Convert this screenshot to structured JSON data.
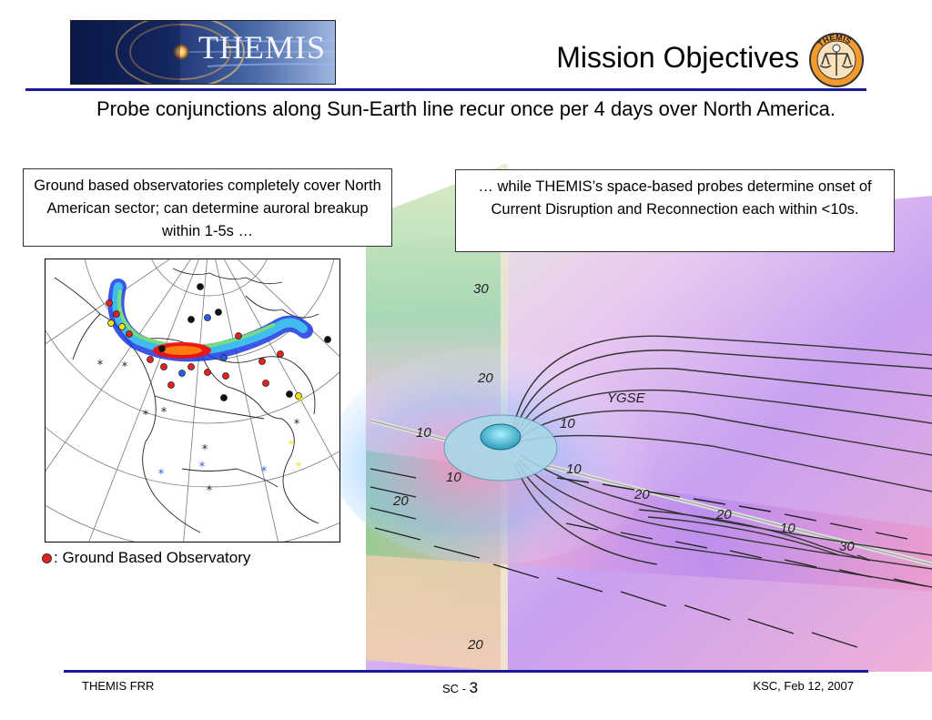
{
  "header": {
    "logo_text": "THEMIS",
    "title": "Mission Objectives",
    "seal_text": "THEMIS"
  },
  "subtitle": "Probe conjunctions along Sun-Earth line recur once per 4 days over North America.",
  "left_callout": {
    "text": "Ground based observatories completely cover North American sector; can determine auroral breakup within 1-5s …"
  },
  "right_callout": {
    "text": "… while THEMIS’s space-based probes determine onset of Current Disruption and Reconnection each within <10s."
  },
  "viz_labels": {
    "l1": "30",
    "l2": "20",
    "l3": "10",
    "l4": "10",
    "l5": "10",
    "l6": "20",
    "l7": "10",
    "l8": "20",
    "l9": "20",
    "l10": "10",
    "l11": "30",
    "l12": "20",
    "ygse": "YGSE"
  },
  "legend": {
    "text": ": Ground Based Observatory"
  },
  "footer": {
    "left": "THEMIS FRR",
    "mid_prefix": "SC - ",
    "mid_number": "3",
    "right": "KSC, Feb 12, 2007"
  },
  "colors": {
    "rule": "#1a1a9a",
    "observatory_red": "#e8211c",
    "observatory_black": "#111111",
    "observatory_blue": "#2a5ee8",
    "observatory_yellow": "#f2e21a"
  }
}
